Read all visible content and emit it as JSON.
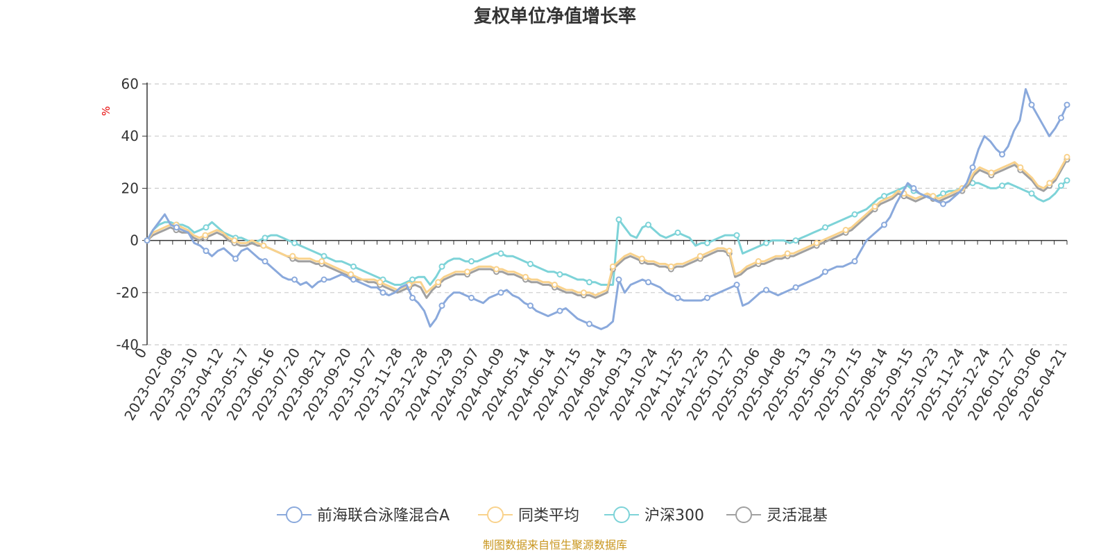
{
  "chart_data": {
    "type": "line",
    "title": "复权单位净值增长率",
    "y_unit": "%",
    "ylim": [
      -40,
      60
    ],
    "y_ticks": [
      -40,
      -20,
      0,
      20,
      40,
      60
    ],
    "grid": true,
    "legend_position": "bottom",
    "x_labels": [
      "0",
      "2023-02-08",
      "2023-03-10",
      "2023-04-12",
      "2023-05-17",
      "2023-06-16",
      "2023-07-20",
      "2023-08-21",
      "2023-09-20",
      "2023-10-27",
      "2023-11-28",
      "2023-12-28",
      "2024-01-29",
      "2024-03-07",
      "2024-04-09",
      "2024-05-14",
      "2024-06-14",
      "2024-07-15",
      "2024-08-14",
      "2024-09-13",
      "2024-10-24",
      "2024-11-25",
      "2024-12-25",
      "2025-01-27",
      "2025-03-06",
      "2025-04-08",
      "2025-05-13",
      "2025-06-13",
      "2025-07-15",
      "2025-08-14",
      "2025-09-15",
      "2025-10-23",
      "2025-11-24",
      "2025-12-24",
      "2026-01-27",
      "2026-03-06",
      "2026-04-21"
    ],
    "series": [
      {
        "name": "前海联合泳隆混合A",
        "color": "#8aa9dc",
        "values": [
          0,
          4,
          7,
          10,
          6,
          5,
          4,
          3,
          -1,
          -2,
          -4,
          -6,
          -4,
          -3,
          -5,
          -7,
          -4,
          -3,
          -5,
          -7,
          -8,
          -10,
          -12,
          -14,
          -15,
          -15,
          -17,
          -16,
          -18,
          -16,
          -15,
          -15,
          -14,
          -13,
          -14,
          -15,
          -16,
          -17,
          -18,
          -18,
          -20,
          -21,
          -20,
          -18,
          -17,
          -22,
          -24,
          -27,
          -33,
          -30,
          -25,
          -22,
          -20,
          -20,
          -21,
          -22,
          -23,
          -24,
          -22,
          -21,
          -20,
          -19,
          -21,
          -22,
          -24,
          -25,
          -27,
          -28,
          -29,
          -28,
          -27,
          -26,
          -28,
          -30,
          -31,
          -32,
          -33,
          -34,
          -33,
          -31,
          -15,
          -20,
          -17,
          -16,
          -15,
          -16,
          -17,
          -18,
          -20,
          -21,
          -22,
          -23,
          -23,
          -23,
          -23,
          -22,
          -21,
          -20,
          -19,
          -18,
          -17,
          -25,
          -24,
          -22,
          -20,
          -19,
          -20,
          -21,
          -20,
          -19,
          -18,
          -17,
          -16,
          -15,
          -14,
          -12,
          -11,
          -10,
          -10,
          -9,
          -8,
          -4,
          0,
          2,
          4,
          6,
          9,
          14,
          18,
          22,
          20,
          18,
          17,
          16,
          15,
          14,
          15,
          17,
          19,
          22,
          28,
          35,
          40,
          38,
          35,
          33,
          36,
          42,
          46,
          58,
          52,
          48,
          44,
          40,
          43,
          47,
          52
        ]
      },
      {
        "name": "同类平均",
        "color": "#f9d28c",
        "values": [
          0,
          3,
          4,
          5,
          6,
          6,
          5,
          4,
          2,
          1,
          2,
          3,
          4,
          3,
          1,
          0,
          -1,
          -1,
          0,
          -1,
          -2,
          -3,
          -4,
          -5,
          -6,
          -6,
          -7,
          -7,
          -7,
          -8,
          -8,
          -9,
          -10,
          -11,
          -12,
          -13,
          -14,
          -15,
          -15,
          -15,
          -16,
          -17,
          -18,
          -19,
          -18,
          -17,
          -16,
          -16,
          -20,
          -18,
          -16,
          -14,
          -13,
          -12,
          -12,
          -12,
          -11,
          -10,
          -10,
          -10,
          -11,
          -11,
          -12,
          -12,
          -13,
          -14,
          -15,
          -15,
          -16,
          -16,
          -17,
          -18,
          -19,
          -19,
          -20,
          -20,
          -20,
          -21,
          -20,
          -19,
          -10,
          -8,
          -6,
          -5,
          -6,
          -7,
          -8,
          -8,
          -9,
          -9,
          -10,
          -9,
          -9,
          -8,
          -7,
          -6,
          -5,
          -4,
          -3,
          -3,
          -4,
          -13,
          -12,
          -10,
          -9,
          -8,
          -8,
          -7,
          -6,
          -6,
          -5,
          -5,
          -4,
          -3,
          -2,
          -1,
          0,
          1,
          2,
          3,
          4,
          5,
          7,
          9,
          11,
          13,
          15,
          16,
          17,
          19,
          18,
          17,
          16,
          17,
          18,
          17,
          16,
          17,
          18,
          19,
          20,
          22,
          26,
          28,
          27,
          26,
          27,
          28,
          29,
          30,
          28,
          26,
          24,
          21,
          20,
          22,
          24,
          28,
          32
        ]
      },
      {
        "name": "沪深300",
        "color": "#7dd3d8",
        "values": [
          0,
          4,
          6,
          7,
          7,
          6,
          6,
          5,
          3,
          4,
          5,
          7,
          5,
          3,
          2,
          1,
          1,
          0,
          -1,
          0,
          1,
          2,
          2,
          1,
          0,
          -1,
          -2,
          -3,
          -4,
          -5,
          -6,
          -7,
          -8,
          -8,
          -9,
          -10,
          -11,
          -12,
          -13,
          -14,
          -15,
          -16,
          -17,
          -17,
          -16,
          -15,
          -14,
          -14,
          -17,
          -14,
          -10,
          -8,
          -7,
          -7,
          -8,
          -8,
          -8,
          -7,
          -6,
          -5,
          -5,
          -6,
          -6,
          -7,
          -8,
          -9,
          -10,
          -11,
          -12,
          -12,
          -13,
          -13,
          -14,
          -15,
          -15,
          -16,
          -16,
          -17,
          -17,
          -17,
          8,
          5,
          2,
          1,
          5,
          6,
          4,
          2,
          1,
          2,
          3,
          2,
          1,
          -2,
          -1,
          -1,
          0,
          1,
          2,
          2,
          2,
          -5,
          -4,
          -3,
          -2,
          -1,
          0,
          0,
          0,
          -1,
          0,
          1,
          2,
          3,
          4,
          5,
          6,
          7,
          8,
          9,
          10,
          11,
          12,
          14,
          16,
          17,
          18,
          19,
          20,
          21,
          19,
          18,
          17,
          16,
          17,
          18,
          19,
          19,
          20,
          21,
          22,
          22,
          21,
          20,
          20,
          21,
          22,
          21,
          20,
          19,
          18,
          16,
          15,
          16,
          18,
          21,
          23
        ]
      },
      {
        "name": "灵活混基",
        "color": "#a0a0a0",
        "values": [
          0,
          2,
          3,
          4,
          5,
          4,
          3,
          3,
          1,
          0,
          1,
          2,
          3,
          2,
          0,
          -1,
          -2,
          -2,
          -1,
          -2,
          -2,
          -3,
          -4,
          -5,
          -6,
          -7,
          -8,
          -8,
          -8,
          -9,
          -9,
          -10,
          -11,
          -12,
          -13,
          -14,
          -15,
          -15,
          -16,
          -16,
          -17,
          -18,
          -19,
          -20,
          -19,
          -18,
          -17,
          -18,
          -22,
          -19,
          -17,
          -15,
          -14,
          -13,
          -13,
          -13,
          -12,
          -11,
          -11,
          -11,
          -12,
          -12,
          -13,
          -13,
          -14,
          -15,
          -16,
          -16,
          -17,
          -17,
          -18,
          -19,
          -20,
          -20,
          -21,
          -21,
          -21,
          -22,
          -21,
          -20,
          -11,
          -9,
          -7,
          -6,
          -7,
          -8,
          -9,
          -9,
          -10,
          -10,
          -11,
          -10,
          -10,
          -9,
          -8,
          -7,
          -6,
          -5,
          -4,
          -4,
          -5,
          -14,
          -13,
          -11,
          -10,
          -9,
          -9,
          -8,
          -7,
          -7,
          -6,
          -6,
          -5,
          -4,
          -3,
          -2,
          -1,
          0,
          1,
          2,
          3,
          4,
          6,
          8,
          10,
          12,
          14,
          15,
          16,
          18,
          17,
          16,
          15,
          16,
          17,
          16,
          15,
          16,
          17,
          18,
          19,
          21,
          25,
          27,
          26,
          25,
          26,
          27,
          28,
          29,
          27,
          25,
          23,
          20,
          19,
          21,
          23,
          27,
          31
        ]
      }
    ]
  },
  "source_text": "制图数据来自恒生聚源数据库"
}
